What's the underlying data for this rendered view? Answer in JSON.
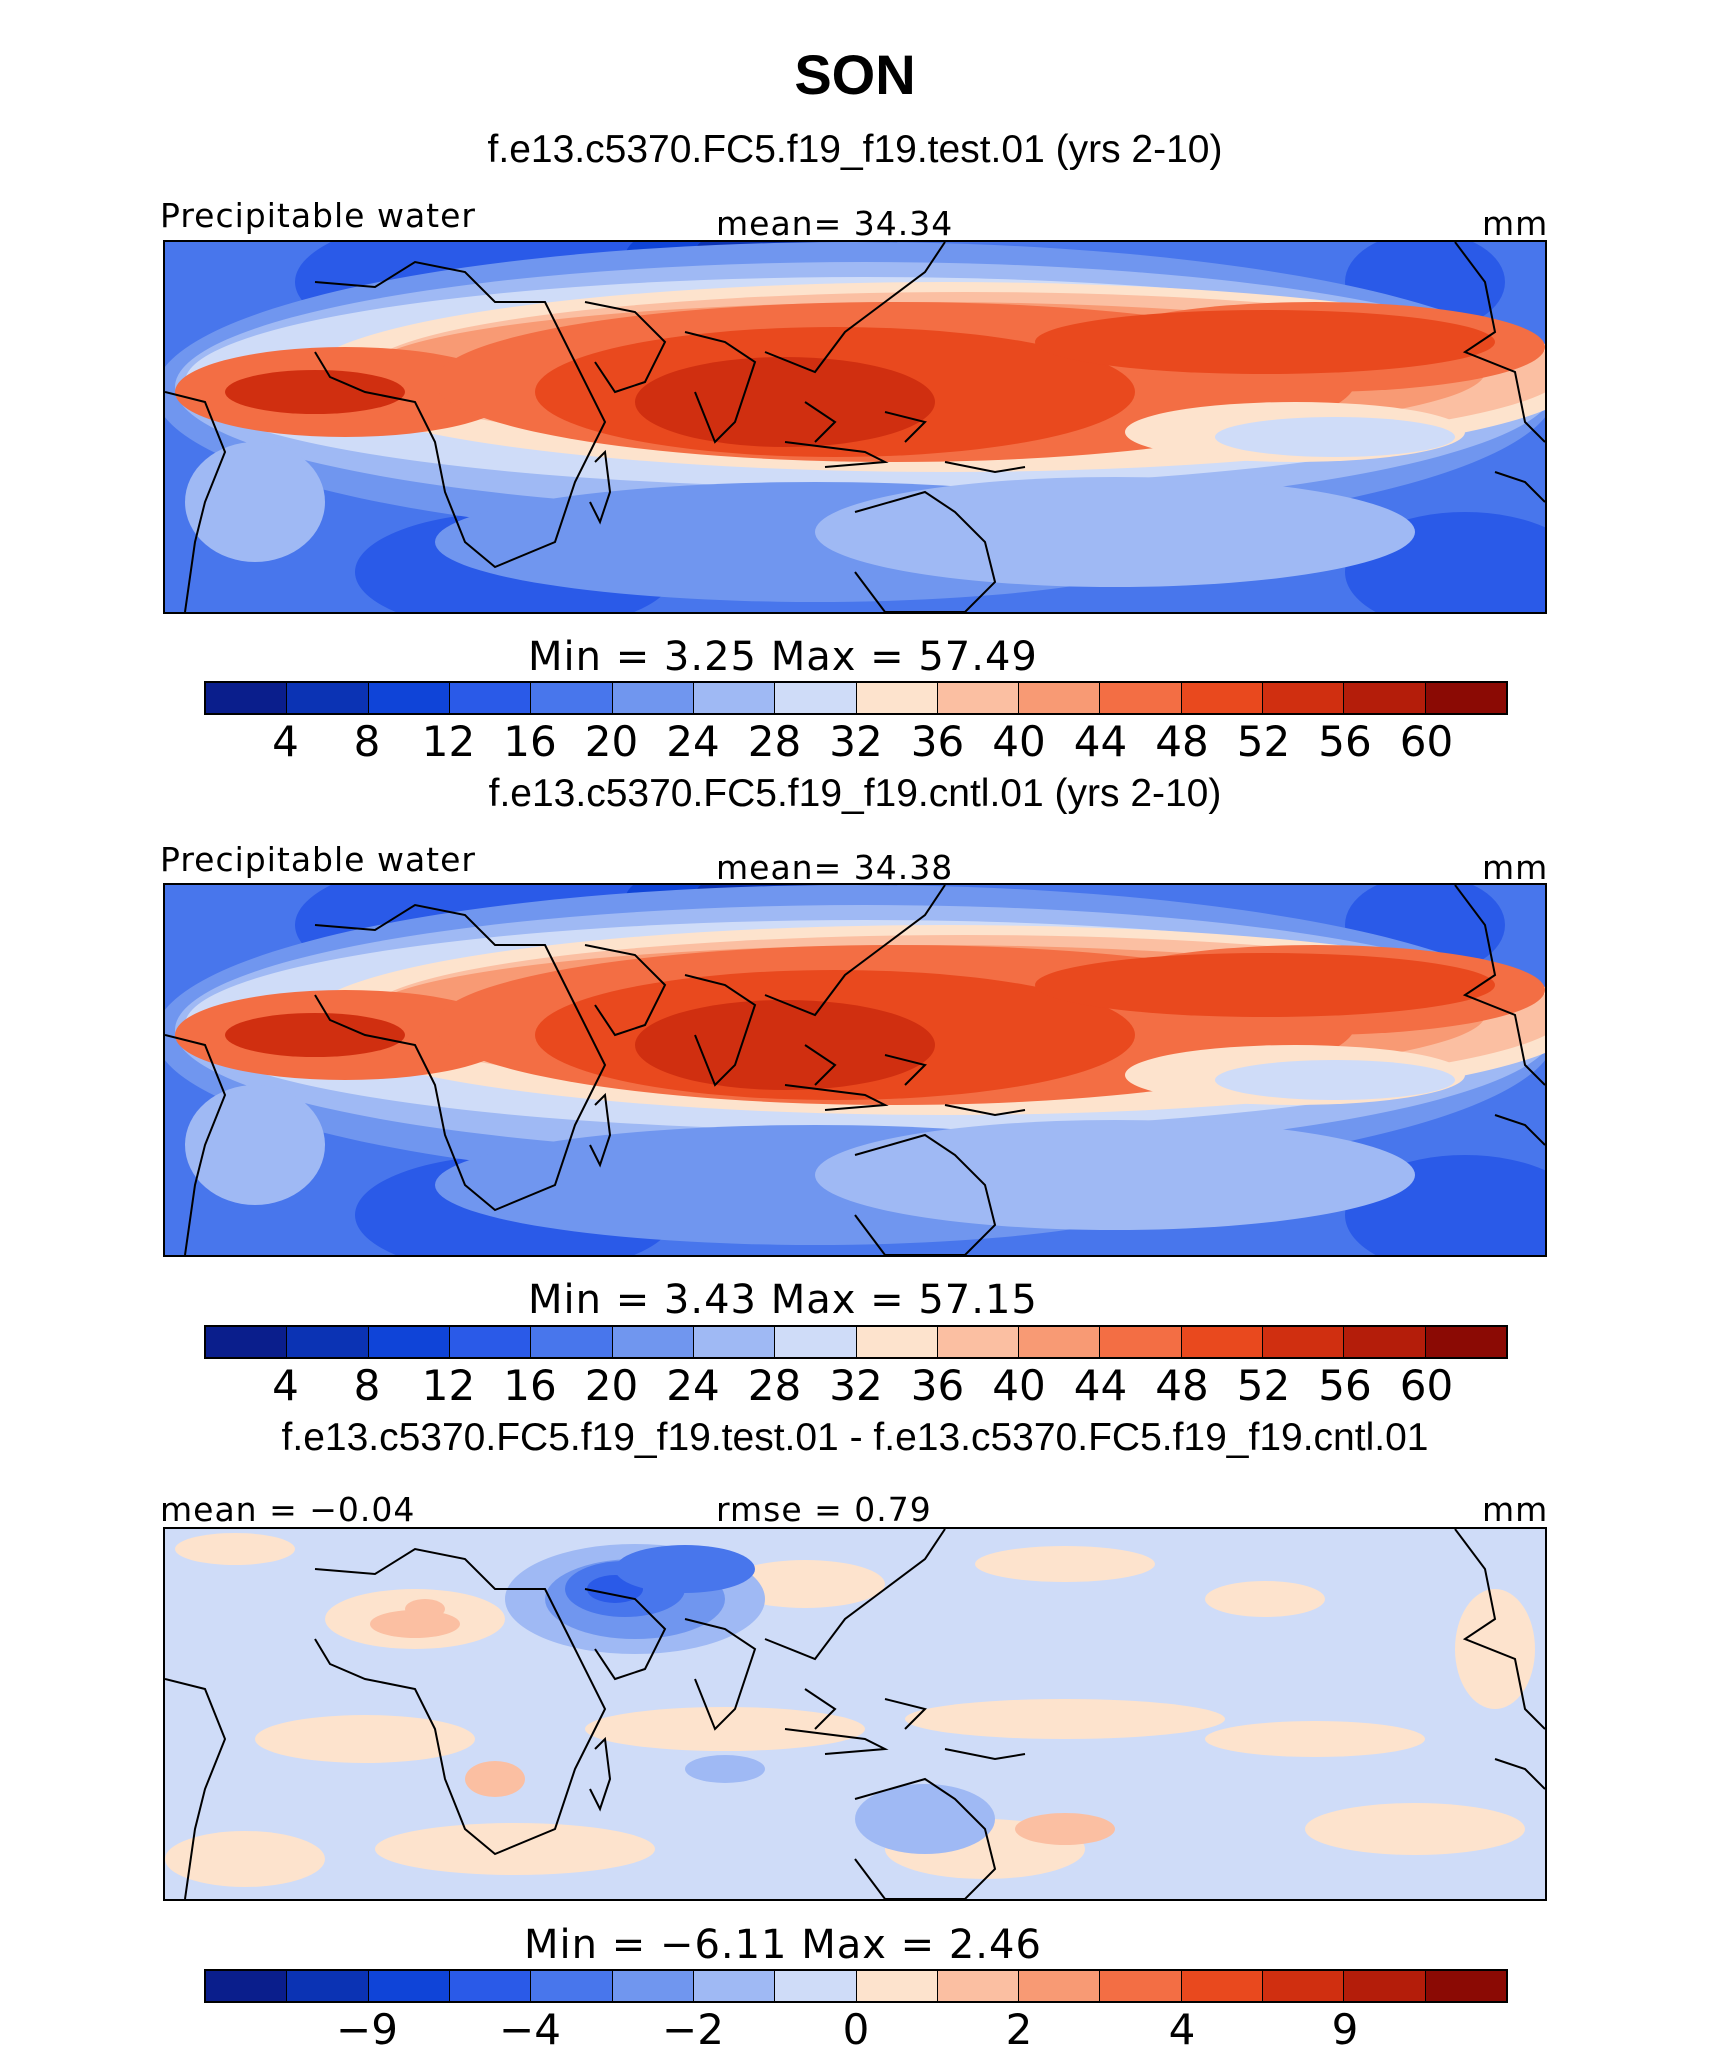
{
  "figure": {
    "title": "SON"
  },
  "panels": [
    {
      "id": "test",
      "case_title": "f.e13.c5370.FC5.f19_f19.test.01 (yrs 2-10)",
      "left_label": "Precipitable water",
      "center_label": "mean=   34.34",
      "right_label": "mm",
      "min_max": "Min  =    3.25  Max  =   57.49",
      "colorbar_ticks": [
        "4",
        "8",
        "12",
        "16",
        "20",
        "24",
        "28",
        "32",
        "36",
        "40",
        "44",
        "48",
        "52",
        "56",
        "60"
      ],
      "colorbar_colors": [
        "#0a1e8c",
        "#0b33b4",
        "#0f44d8",
        "#2a5ae8",
        "#4876ec",
        "#7096ef",
        "#9fb9f4",
        "#cfdcf8",
        "#fde3cd",
        "#fbbfa2",
        "#f89a74",
        "#f36e44",
        "#e9491e",
        "#d02f10",
        "#b41d0a",
        "#8b0a04"
      ],
      "map_style": "absolute"
    },
    {
      "id": "cntl",
      "case_title": "f.e13.c5370.FC5.f19_f19.cntl.01 (yrs 2-10)",
      "left_label": "Precipitable water",
      "center_label": "mean=   34.38",
      "right_label": "mm",
      "min_max": "Min  =    3.43  Max  =   57.15",
      "colorbar_ticks": [
        "4",
        "8",
        "12",
        "16",
        "20",
        "24",
        "28",
        "32",
        "36",
        "40",
        "44",
        "48",
        "52",
        "56",
        "60"
      ],
      "colorbar_colors": [
        "#0a1e8c",
        "#0b33b4",
        "#0f44d8",
        "#2a5ae8",
        "#4876ec",
        "#7096ef",
        "#9fb9f4",
        "#cfdcf8",
        "#fde3cd",
        "#fbbfa2",
        "#f89a74",
        "#f36e44",
        "#e9491e",
        "#d02f10",
        "#b41d0a",
        "#8b0a04"
      ],
      "map_style": "absolute"
    },
    {
      "id": "diff",
      "case_title": "f.e13.c5370.FC5.f19_f19.test.01 - f.e13.c5370.FC5.f19_f19.cntl.01",
      "left_label": "mean =   −0.04",
      "center_label": "rmse =    0.79",
      "right_label": "mm",
      "min_max": "Min  =   −6.11  Max  =     2.46",
      "colorbar_ticks": [
        "−9",
        "−4",
        "−2",
        "0",
        "2",
        "4",
        "9"
      ],
      "colorbar_colors": [
        "#0a1e8c",
        "#0b33b4",
        "#0f44d8",
        "#2a5ae8",
        "#4876ec",
        "#7096ef",
        "#9fb9f4",
        "#cfdcf8",
        "#fde3cd",
        "#fbbfa2",
        "#f89a74",
        "#f36e44",
        "#e9491e",
        "#d02f10",
        "#b41d0a",
        "#8b0a04"
      ],
      "map_style": "difference"
    }
  ]
}
